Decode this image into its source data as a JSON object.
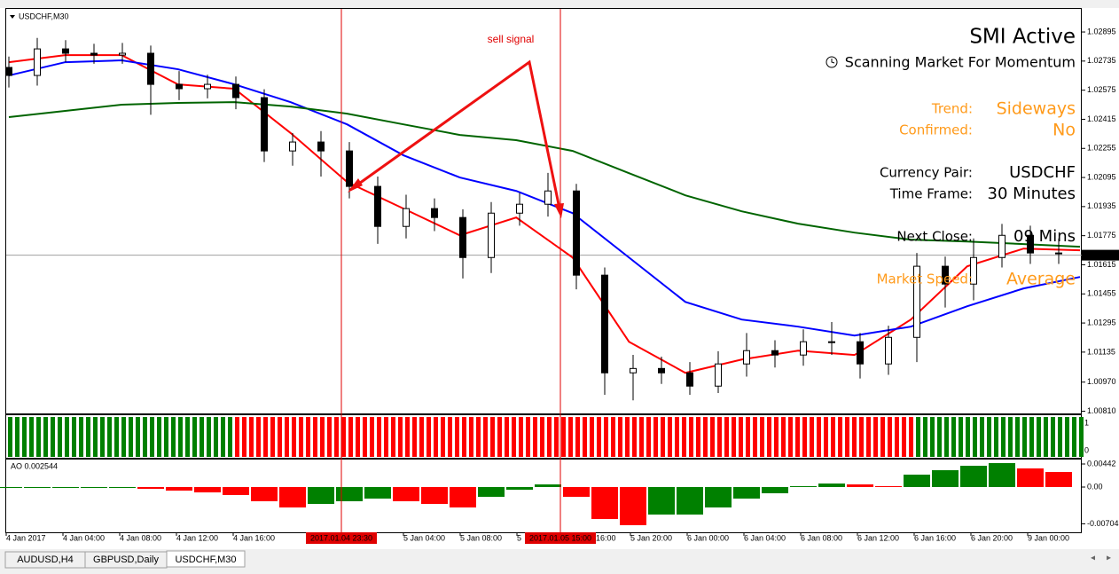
{
  "window": {
    "symbol": "USDCHF,M30",
    "ao_label": "AO 0.002544",
    "sell_label": "sell signal"
  },
  "tabs": [
    "AUDUSD,H4",
    "GBPUSD,Daily",
    "USDCHF,M30"
  ],
  "info_panel": {
    "title": "SMI Active",
    "status": "Scanning Market For Momentum",
    "rows": [
      {
        "label": "Trend:",
        "value": "Sideways"
      },
      {
        "label": "Confirmed:",
        "value": "No"
      },
      {
        "label": "Currency Pair:",
        "value": "USDCHF"
      },
      {
        "label": "Time Frame:",
        "value": "30 Minutes"
      },
      {
        "label": "Next Close:",
        "value": "09 Mins"
      },
      {
        "label": "Market Speed:",
        "value": "Average"
      }
    ]
  },
  "time_axis": {
    "labels": [
      "4 Jan 2017",
      "4 Jan 04:00",
      "4 Jan 08:00",
      "4 Jan 12:00",
      "4 Jan 16:00",
      null,
      null,
      "5 Jan 04:00",
      "5 Jan 08:00",
      "5",
      "16:00",
      "5 Jan 20:00",
      "6 Jan 00:00",
      "6 Jan 04:00",
      "6 Jan 08:00",
      "6 Jan 12:00",
      "6 Jan 16:00",
      "6 Jan 20:00",
      "9 Jan 00:00"
    ],
    "crosshairs": [
      "2017.01.04 23:30",
      "2017.01.05 15:00"
    ]
  },
  "chart_data": [
    {
      "type": "candlestick",
      "ylim": [
        1.00793,
        1.03022
      ],
      "yticks": [
        1.02895,
        1.02735,
        1.02575,
        1.02415,
        1.02255,
        1.02095,
        1.01935,
        1.01775,
        1.01615,
        1.01455,
        1.01295,
        1.01135,
        {
          "value": 1.0097,
          "label": "1.00970"
        },
        {
          "value": 1.0081,
          "label": "1.00810"
        }
      ],
      "current_price": 1.01668,
      "open": [
        1.027,
        1.02656,
        1.02802,
        1.02778,
        1.02768,
        1.02778,
        1.02607,
        1.02583,
        1.02607,
        1.02534,
        1.02241,
        1.0229,
        1.02241,
        1.02046,
        1.01826,
        1.01924,
        1.01875,
        1.01655,
        1.01899,
        1.01948,
        1.02021,
        1.01558,
        1.01021,
        1.01045,
        1.01021,
        1.00948,
        1.0107,
        1.01143,
        1.01119,
        1.01192,
        1.01192,
        1.0107,
        1.01216,
        1.01607,
        1.01509,
        1.01655,
        1.01777,
        1.0168
      ],
      "high": [
        1.0276,
        1.02862,
        1.0285,
        1.0283,
        1.02835,
        1.0282,
        1.0268,
        1.0266,
        1.0265,
        1.0258,
        1.0234,
        1.0235,
        1.0229,
        1.021,
        1.02,
        1.0198,
        1.0192,
        1.0196,
        1.0201,
        1.0212,
        1.0206,
        1.016,
        1.0112,
        1.0111,
        1.0108,
        1.0114,
        1.0124,
        1.012,
        1.0126,
        1.013,
        1.0124,
        1.0128,
        1.0168,
        1.0166,
        1.0176,
        1.0184,
        1.0183,
        1.0176
      ],
      "low": [
        1.0259,
        1.026,
        1.0273,
        1.0272,
        1.0272,
        1.0244,
        1.0252,
        1.0253,
        1.0247,
        1.0218,
        1.0216,
        1.021,
        1.0198,
        1.0173,
        1.0176,
        1.018,
        1.0154,
        1.0157,
        1.0183,
        1.0188,
        1.0148,
        1.009,
        1.0087,
        1.0096,
        1.009,
        1.0091,
        1.01,
        1.0105,
        1.0106,
        1.0112,
        1.0099,
        1.0101,
        1.0108,
        1.0138,
        1.0142,
        1.016,
        1.0162,
        1.0162
      ],
      "close": [
        1.02656,
        1.02802,
        1.02778,
        1.02768,
        1.02778,
        1.02607,
        1.02583,
        1.02607,
        1.02534,
        1.02241,
        1.0229,
        1.02241,
        1.02046,
        1.01826,
        1.01924,
        1.01875,
        1.01655,
        1.01899,
        1.01948,
        1.02021,
        1.01558,
        1.01021,
        1.01045,
        1.01021,
        1.00948,
        1.0107,
        1.01143,
        1.01119,
        1.01192,
        1.01192,
        1.0107,
        1.01216,
        1.01607,
        1.01509,
        1.01655,
        1.01777,
        1.0168,
        1.0168
      ],
      "series": [
        {
          "color": "#ff0000",
          "values": [
            1.02729,
            1.02768,
            1.02768,
            1.02607,
            1.02583,
            1.02339,
            1.0207,
            1.01924,
            1.01777,
            1.01875,
            1.01655,
            1.01192,
            1.01021,
            1.01094,
            1.01143,
            1.01119,
            1.01314,
            1.01607,
            1.01704,
            1.01695
          ]
        },
        {
          "color": "#0000ff",
          "values": [
            1.02656,
            1.02729,
            1.02739,
            1.0269,
            1.02607,
            1.02509,
            1.02387,
            1.02217,
            1.02095,
            1.02021,
            1.01899,
            1.01655,
            1.01411,
            1.01314,
            1.01275,
            1.01226,
            1.01275,
            1.01387,
            1.01485,
            1.01548
          ]
        },
        {
          "color": "#006400",
          "values": [
            1.02427,
            1.02461,
            1.02495,
            1.02505,
            1.02509,
            1.02485,
            1.02446,
            1.02387,
            1.02329,
            1.023,
            1.02241,
            1.02119,
            1.01997,
            1.01909,
            1.01841,
            1.01792,
            1.01753,
            1.01743,
            1.01729,
            1.01714
          ]
        }
      ]
    },
    {
      "type": "bar",
      "ylim": [
        -0.00867,
        0.00527
      ],
      "yticks": [
        0.00442,
        {
          "value": 0,
          "label": "0.00"
        },
        -0.00704
      ],
      "values": [
        0,
        0,
        0,
        0,
        0,
        -0.00034,
        -0.00068,
        -0.00102,
        -0.00153,
        -0.00272,
        -0.00391,
        -0.00323,
        -0.00272,
        -0.00221,
        -0.00272,
        -0.00323,
        -0.00391,
        -0.00187,
        -0.00051,
        0.00051,
        -0.00187,
        -0.00612,
        -0.00731,
        -0.00527,
        -0.00527,
        -0.00391,
        -0.00221,
        -0.00119,
        0.00017,
        0.00068,
        0.00051,
        0.00017,
        0.00238,
        0.00323,
        0.00408,
        0.00459,
        0.00357,
        0.00289
      ]
    }
  ]
}
